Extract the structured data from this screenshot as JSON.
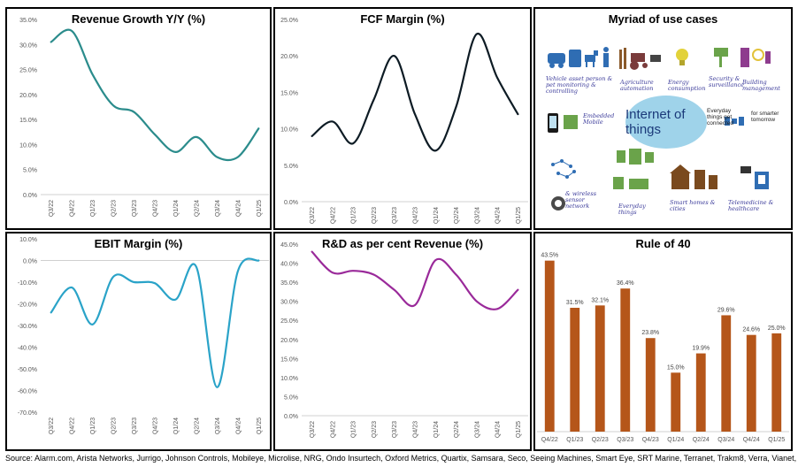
{
  "chart_data": [
    {
      "type": "line",
      "title": "Revenue Growth Y/Y (%)",
      "categories": [
        "Q3/22",
        "Q4/22",
        "Q1/23",
        "Q2/23",
        "Q3/23",
        "Q4/23",
        "Q1/24",
        "Q2/24",
        "Q3/24",
        "Q4/24",
        "Q1/25"
      ],
      "values": [
        30.5,
        32.7,
        24.0,
        17.8,
        16.5,
        12.0,
        8.5,
        11.5,
        7.5,
        7.5,
        13.2
      ],
      "yticks": [
        "0.0%",
        "5.0%",
        "10.0%",
        "15.0%",
        "20.0%",
        "25.0%",
        "30.0%",
        "35.0%"
      ],
      "ylim": [
        0,
        35
      ],
      "color": "#2b8c8c",
      "grid": false
    },
    {
      "type": "line",
      "title": "FCF Margin (%)",
      "categories": [
        "Q3/22",
        "Q4/22",
        "Q1/23",
        "Q2/23",
        "Q3/23",
        "Q4/23",
        "Q1/24",
        "Q2/24",
        "Q3/24",
        "Q4/24",
        "Q1/25"
      ],
      "values": [
        9.0,
        11.0,
        8.0,
        14.0,
        20.0,
        12.0,
        7.0,
        13.0,
        23.0,
        17.0,
        12.0
      ],
      "yticks": [
        "0.0%",
        "5.0%",
        "10.0%",
        "15.0%",
        "20.0%",
        "25.0%"
      ],
      "ylim": [
        0,
        25
      ],
      "color": "#0d1b24",
      "grid": false
    },
    {
      "type": "line",
      "title": "EBIT Margin (%)",
      "categories": [
        "Q3/22",
        "Q4/22",
        "Q1/23",
        "Q2/23",
        "Q3/23",
        "Q4/23",
        "Q1/24",
        "Q2/24",
        "Q3/24",
        "Q4/24",
        "Q1/25"
      ],
      "values": [
        -24.0,
        -12.5,
        -29.5,
        -7.5,
        -10.0,
        -10.5,
        -18.0,
        -3.0,
        -58.5,
        -5.0,
        0.0
      ],
      "yticks": [
        "-70.0%",
        "-60.0%",
        "-50.0%",
        "-40.0%",
        "-30.0%",
        "-20.0%",
        "-10.0%",
        "0.0%",
        "10.0%"
      ],
      "ylim": [
        -70,
        10
      ],
      "color": "#2aa3c8",
      "grid": false
    },
    {
      "type": "line",
      "title": "R&D as per cent Revenue (%)",
      "categories": [
        "Q3/22",
        "Q4/22",
        "Q1/23",
        "Q2/23",
        "Q3/23",
        "Q4/23",
        "Q1/24",
        "Q2/24",
        "Q3/24",
        "Q4/24",
        "Q1/25"
      ],
      "values": [
        43.0,
        37.5,
        38.0,
        37.0,
        33.0,
        29.0,
        40.8,
        37.0,
        30.0,
        28.0,
        33.0
      ],
      "yticks": [
        "0.0%",
        "5.0%",
        "10.0%",
        "15.0%",
        "20.0%",
        "25.0%",
        "30.0%",
        "35.0%",
        "40.0%",
        "45.0%"
      ],
      "ylim": [
        0,
        45
      ],
      "color": "#9a2a9a",
      "grid": false
    },
    {
      "type": "bar",
      "title": "Rule of 40",
      "categories": [
        "Q4/22",
        "Q1/23",
        "Q2/23",
        "Q3/23",
        "Q4/23",
        "Q1/24",
        "Q2/24",
        "Q3/24",
        "Q4/24",
        "Q1/25"
      ],
      "values": [
        43.5,
        31.5,
        32.1,
        36.4,
        23.8,
        15.0,
        19.9,
        29.6,
        24.6,
        25.0
      ],
      "labels": [
        "43.5%",
        "31.5%",
        "32.1%",
        "36.4%",
        "23.8%",
        "15.0%",
        "19.9%",
        "29.6%",
        "24.6%",
        "25.0%"
      ],
      "ylim": [
        0,
        45
      ],
      "color": "#b5561a",
      "grid": false
    }
  ],
  "iot": {
    "title": "Myriad of use cases",
    "center": "Internet of things",
    "captions": {
      "vehicle": "Vehicle asset person & pet monitoring & controlling",
      "agri": "Agriculture automation",
      "energy": "Energy consumption",
      "security": "Security & surveillance",
      "building": "Building management",
      "embedded": "Embedded Mobile",
      "everyday_connected": "Everyday things get connected",
      "smarter": "for smarter tomorrow",
      "wireless": "& wireless sensor network",
      "everyday": "Everyday things",
      "homes": "Smart homes & cities",
      "tele": "Telemedicine & healthcare"
    }
  },
  "source": "Source: Alarm.com, Arista Networks, Jurrigo, Johnson Controls, Mobileye, Microlise, NRG, Ondo Insurtech, Oxford Metrics, Quartix, Samsara, Seco, Seeing Machines, Smart Eye, SRT Marine, Terranet, Trakm8, Verra, Vianet, Wavye"
}
